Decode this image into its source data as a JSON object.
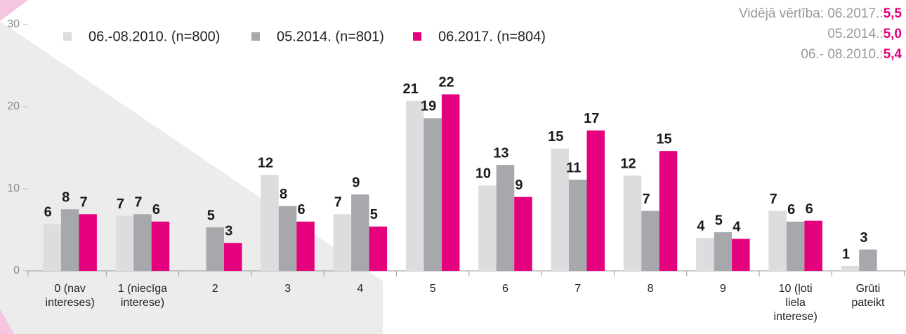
{
  "chart_data": {
    "type": "bar",
    "categories": [
      "0 (nav\nintereses)",
      "1 (niecīga\ninterese)",
      "2",
      "3",
      "4",
      "5",
      "6",
      "7",
      "8",
      "9",
      "10 (ļoti\nliela\ninterese)",
      "Grūti\npateikt"
    ],
    "series": [
      {
        "name": "06.-08.2010. (n=800)",
        "color": "#dcdddf",
        "values": [
          5.7,
          6.7,
          null,
          11.7,
          6.9,
          20.7,
          10.4,
          14.9,
          11.6,
          4.0,
          7.3,
          0.6
        ],
        "value_labels": [
          "6",
          "7",
          null,
          "12",
          "7",
          "21",
          "10",
          "15",
          "12",
          "4",
          "7",
          "1"
        ]
      },
      {
        "name": "05.2014. (n=801)",
        "color": "#a6a8ab",
        "values": [
          7.5,
          6.9,
          5.3,
          7.9,
          9.3,
          18.6,
          12.9,
          11.1,
          7.3,
          4.7,
          6.0,
          2.6
        ],
        "value_labels": [
          "8",
          "7",
          "5",
          "8",
          "9",
          "19",
          "13",
          "11",
          "7",
          "5",
          "6",
          "3"
        ]
      },
      {
        "name": "06.2017. (n=804)",
        "color": "#e5007e",
        "values": [
          6.9,
          6.0,
          3.4,
          6.0,
          5.4,
          21.5,
          9.0,
          17.1,
          14.6,
          3.9,
          6.1,
          null
        ],
        "value_labels": [
          "7",
          "6",
          "3",
          "6",
          "5",
          "22",
          "9",
          "17",
          "15",
          "4",
          "6",
          null
        ]
      }
    ],
    "ylim": [
      0,
      30
    ],
    "yticks": [
      0,
      10,
      20,
      30
    ],
    "grid": false,
    "legend": "top",
    "annotations": [
      {
        "label": "Vidējā vērtība: 06.2017.:",
        "value": "5,5"
      },
      {
        "label": "05.2014.:",
        "value": "5,0"
      },
      {
        "label": "06.-  08.2010.:",
        "value": "5,4"
      }
    ]
  }
}
